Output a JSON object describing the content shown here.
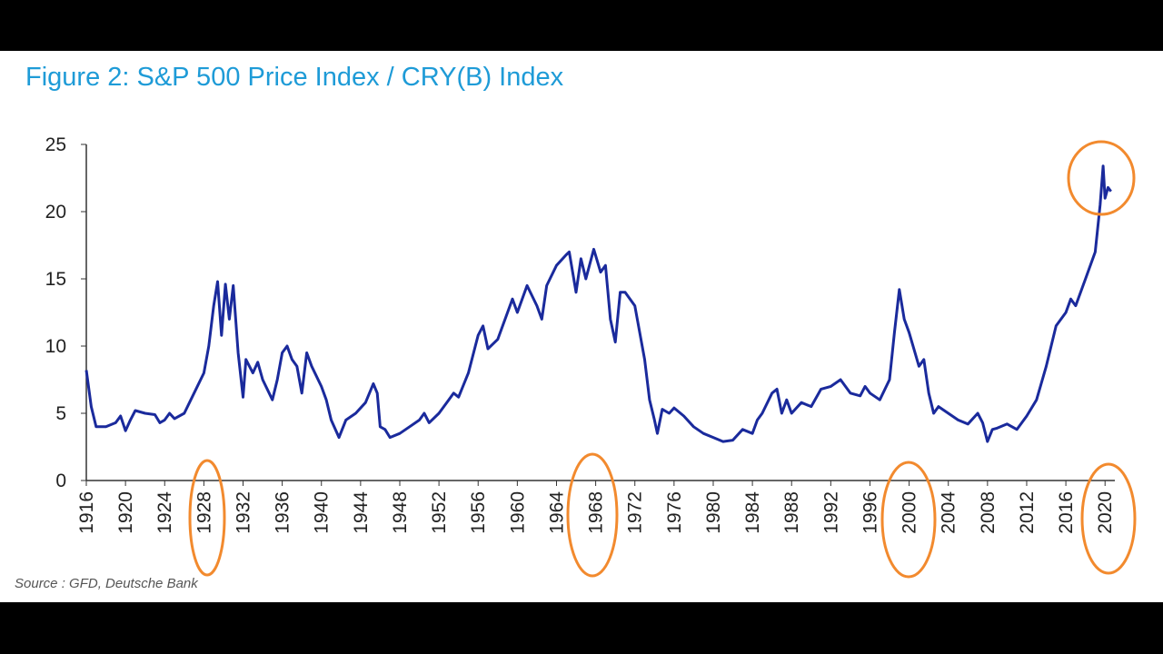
{
  "chart_data": {
    "type": "line",
    "title": "Figure 2: S&P 500 Price Index / CRY(B) Index",
    "source": "Source : GFD, Deutsche Bank",
    "xlim": [
      1916,
      2021
    ],
    "xticks": [
      1916,
      1920,
      1924,
      1928,
      1932,
      1936,
      1940,
      1944,
      1948,
      1952,
      1956,
      1960,
      1964,
      1968,
      1972,
      1976,
      1980,
      1984,
      1988,
      1992,
      1996,
      2000,
      2004,
      2008,
      2012,
      2016,
      2020
    ],
    "ylim": [
      0,
      25
    ],
    "yticks": [
      0,
      5,
      10,
      15,
      20,
      25
    ],
    "series": [
      {
        "color": "#1a2a9c",
        "x": [
          1916,
          1916.5,
          1917,
          1918,
          1919,
          1919.5,
          1920,
          1920.5,
          1921,
          1922,
          1923,
          1923.5,
          1924,
          1924.5,
          1925,
          1926,
          1927,
          1928,
          1928.5,
          1929,
          1929.4,
          1929.8,
          1930.2,
          1930.6,
          1931,
          1931.5,
          1932,
          1932.3,
          1933,
          1933.5,
          1934,
          1935,
          1935.5,
          1936,
          1936.5,
          1937,
          1937.5,
          1938,
          1938.5,
          1939,
          1940,
          1940.5,
          1941,
          1941.8,
          1942.5,
          1943.5,
          1944.5,
          1945.3,
          1945.7,
          1946,
          1946.5,
          1947,
          1948,
          1949,
          1950,
          1950.5,
          1951,
          1952,
          1953,
          1953.5,
          1954,
          1955,
          1956,
          1956.5,
          1957,
          1958,
          1959,
          1959.5,
          1960,
          1961,
          1962,
          1962.5,
          1963,
          1964,
          1965,
          1965.3,
          1966,
          1966.5,
          1967,
          1967.8,
          1968.5,
          1969,
          1969.5,
          1970,
          1970.5,
          1971,
          1972,
          1973,
          1973.5,
          1974,
          1974.3,
          1974.8,
          1975.5,
          1976,
          1977,
          1978,
          1979,
          1980,
          1981,
          1982,
          1983,
          1984,
          1984.5,
          1985,
          1986,
          1986.5,
          1987,
          1987.5,
          1988,
          1989,
          1990,
          1991,
          1992,
          1993,
          1994,
          1995,
          1995.5,
          1996,
          1997,
          1998,
          1998.5,
          1999,
          1999.5,
          2000,
          2001,
          2001.5,
          2002,
          2002.5,
          2003,
          2004,
          2005,
          2006,
          2007,
          2007.5,
          2008,
          2008.5,
          2009,
          2010,
          2011,
          2012,
          2013,
          2014,
          2015,
          2016,
          2016.5,
          2017,
          2018,
          2019,
          2019.5,
          2019.8,
          2020,
          2020.3,
          2020.6
        ],
        "values": [
          8.2,
          5.5,
          4.0,
          4.0,
          4.3,
          4.8,
          3.7,
          4.5,
          5.2,
          5.0,
          4.9,
          4.3,
          4.5,
          5.0,
          4.6,
          5.0,
          6.5,
          8.0,
          10,
          13,
          14.8,
          10.8,
          14.6,
          12.0,
          14.5,
          9.5,
          6.2,
          9.0,
          8.0,
          8.8,
          7.5,
          6.0,
          7.5,
          9.5,
          10.0,
          9.0,
          8.5,
          6.5,
          9.5,
          8.5,
          7.0,
          6.0,
          4.5,
          3.2,
          4.5,
          5.0,
          5.8,
          7.2,
          6.5,
          4.0,
          3.8,
          3.2,
          3.5,
          4.0,
          4.5,
          5.0,
          4.3,
          5.0,
          6.0,
          6.5,
          6.2,
          8.0,
          10.8,
          11.5,
          9.8,
          10.5,
          12.5,
          13.5,
          12.5,
          14.5,
          13.0,
          12.0,
          14.5,
          16.0,
          16.8,
          17.0,
          14.0,
          16.5,
          15.0,
          17.2,
          15.5,
          16.0,
          12.0,
          10.3,
          14.0,
          14.0,
          13.0,
          9.0,
          6.0,
          4.5,
          3.5,
          5.3,
          5.0,
          5.4,
          4.8,
          4.0,
          3.5,
          3.2,
          2.9,
          3.0,
          3.8,
          3.5,
          4.5,
          5.0,
          6.5,
          6.8,
          5.0,
          6.0,
          5.0,
          5.8,
          5.5,
          6.8,
          7.0,
          7.5,
          6.5,
          6.3,
          7.0,
          6.5,
          6.0,
          7.5,
          11,
          14.2,
          12,
          11,
          8.5,
          9.0,
          6.5,
          5.0,
          5.5,
          5.0,
          4.5,
          4.2,
          5.0,
          4.3,
          2.9,
          3.8,
          3.9,
          4.2,
          3.8,
          4.8,
          6.0,
          8.5,
          11.5,
          12.5,
          13.5,
          13.0,
          15.0,
          17.0,
          20.5,
          23.4,
          21,
          21.8,
          21.5
        ]
      }
    ]
  }
}
